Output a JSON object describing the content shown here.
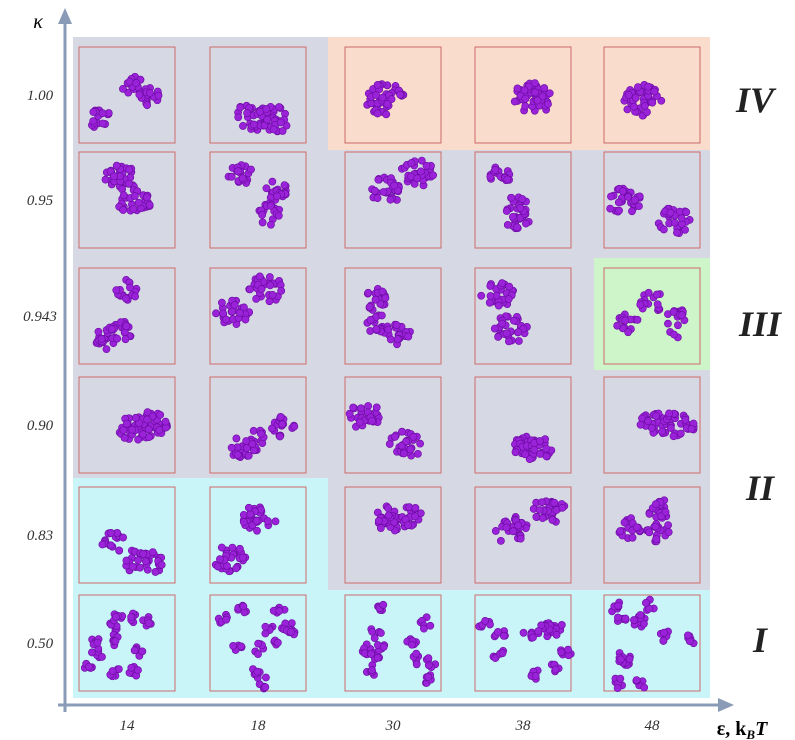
{
  "y_label": "κ",
  "x_label": {
    "main": "ε, k",
    "sub": "B",
    "tail": "T"
  },
  "columns": [
    "14",
    "18",
    "30",
    "38",
    "48"
  ],
  "rows": [
    "1.00",
    "0.95",
    "0.943",
    "0.90",
    "0.83",
    "0.50"
  ],
  "regions": [
    "IV",
    "III",
    "II",
    "I"
  ]
}
